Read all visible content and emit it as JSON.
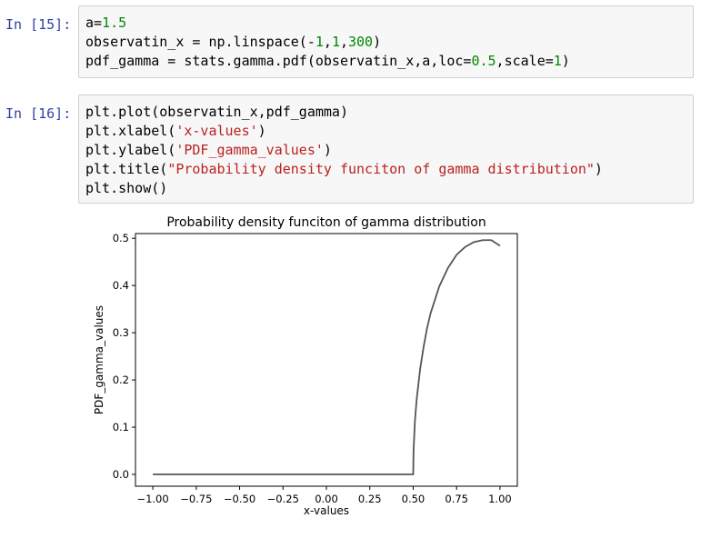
{
  "cells": [
    {
      "prompt": "In [15]:",
      "lines": [
        [
          {
            "t": "a=",
            "c": ""
          },
          {
            "t": "1.5",
            "c": "num"
          }
        ],
        [
          {
            "t": "observatin_x = np.linspace(-",
            "c": ""
          },
          {
            "t": "1",
            "c": "num"
          },
          {
            "t": ",",
            "c": ""
          },
          {
            "t": "1",
            "c": "num"
          },
          {
            "t": ",",
            "c": ""
          },
          {
            "t": "300",
            "c": "num"
          },
          {
            "t": ")",
            "c": ""
          }
        ],
        [
          {
            "t": "pdf_gamma = stats.gamma.pdf(observatin_x,a,loc=",
            "c": ""
          },
          {
            "t": "0.5",
            "c": "num"
          },
          {
            "t": ",scale=",
            "c": ""
          },
          {
            "t": "1",
            "c": "num"
          },
          {
            "t": ")",
            "c": ""
          }
        ]
      ]
    },
    {
      "prompt": "In [16]:",
      "lines": [
        [
          {
            "t": "plt.plot(observatin_x,pdf_gamma)",
            "c": ""
          }
        ],
        [
          {
            "t": "plt.xlabel(",
            "c": ""
          },
          {
            "t": "'x-values'",
            "c": "str"
          },
          {
            "t": ")",
            "c": ""
          }
        ],
        [
          {
            "t": "plt.ylabel(",
            "c": ""
          },
          {
            "t": "'PDF_gamma_values'",
            "c": "str"
          },
          {
            "t": ")",
            "c": ""
          }
        ],
        [
          {
            "t": "plt.title(",
            "c": ""
          },
          {
            "t": "\"Probability density funciton of gamma distribution\"",
            "c": "str"
          },
          {
            "t": ")",
            "c": ""
          }
        ],
        [
          {
            "t": "plt.show()",
            "c": ""
          }
        ]
      ]
    }
  ],
  "colors": {
    "prompt": "#303f9f",
    "number": "#008800",
    "string": "#ba2121",
    "cell_bg": "#f7f7f7",
    "cell_border": "#cfcfcf",
    "line": "#555555"
  },
  "chart_data": {
    "type": "line",
    "title": "Probability density funciton of gamma distribution",
    "xlabel": "x-values",
    "ylabel": "PDF_gamma_values",
    "xlim": [
      -1.1,
      1.1
    ],
    "ylim": [
      -0.025,
      0.51
    ],
    "x_ticks": [
      -1.0,
      -0.75,
      -0.5,
      -0.25,
      0.0,
      0.25,
      0.5,
      0.75,
      1.0
    ],
    "x_tick_labels": [
      "−1.00",
      "−0.75",
      "−0.50",
      "−0.25",
      "0.00",
      "0.25",
      "0.50",
      "0.75",
      "1.00"
    ],
    "y_ticks": [
      0.0,
      0.1,
      0.2,
      0.3,
      0.4,
      0.5
    ],
    "y_tick_labels": [
      "0.0",
      "0.1",
      "0.2",
      "0.3",
      "0.4",
      "0.5"
    ],
    "grid": false,
    "series": [
      {
        "x": [
          -1.0,
          -0.5,
          0.0,
          0.49,
          0.5,
          0.502,
          0.51,
          0.52,
          0.54,
          0.56,
          0.58,
          0.6,
          0.65,
          0.7,
          0.75,
          0.8,
          0.85,
          0.9,
          0.95,
          1.0
        ],
        "y": [
          0.0,
          0.0,
          0.0,
          0.0,
          0.0,
          0.05,
          0.113,
          0.159,
          0.223,
          0.27,
          0.31,
          0.341,
          0.398,
          0.437,
          0.465,
          0.482,
          0.492,
          0.496,
          0.496,
          0.484
        ]
      }
    ]
  }
}
